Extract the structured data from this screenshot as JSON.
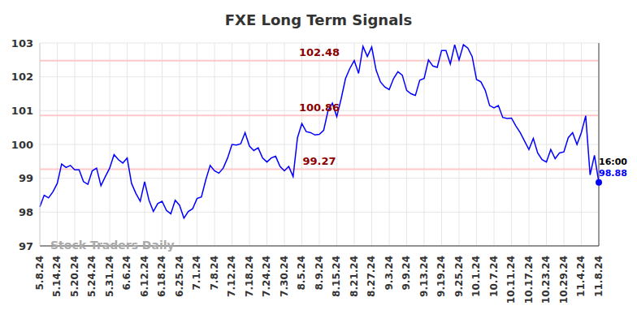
{
  "chart_data": {
    "type": "line",
    "title": "FXE Long Term Signals",
    "categories": [
      "5.8.24",
      null,
      null,
      null,
      "5.14.24",
      null,
      null,
      null,
      "5.20.24",
      null,
      null,
      null,
      "5.24.24",
      null,
      null,
      null,
      "5.31.24",
      null,
      null,
      null,
      "6.6.24",
      null,
      null,
      null,
      "6.12.24",
      null,
      null,
      null,
      "6.18.24",
      null,
      null,
      null,
      "6.25.24",
      null,
      null,
      null,
      "7.1.24",
      null,
      null,
      null,
      "7.8.24",
      null,
      null,
      null,
      "7.12.24",
      null,
      null,
      null,
      "7.18.24",
      null,
      null,
      null,
      "7.24.24",
      null,
      null,
      null,
      "7.30.24",
      null,
      null,
      null,
      "8.5.24",
      null,
      null,
      null,
      "8.9.24",
      null,
      null,
      null,
      "8.15.24",
      null,
      null,
      null,
      "8.21.24",
      null,
      null,
      null,
      "8.27.24",
      null,
      null,
      null,
      "9.3.24",
      null,
      null,
      null,
      "9.9.24",
      null,
      null,
      null,
      "9.13.24",
      null,
      null,
      null,
      "9.19.24",
      null,
      null,
      null,
      "9.25.24",
      null,
      null,
      null,
      "10.1.24",
      null,
      null,
      null,
      "10.7.24",
      null,
      null,
      null,
      "10.11.24",
      null,
      null,
      null,
      "10.17.24",
      null,
      null,
      null,
      "10.23.24",
      null,
      null,
      null,
      "10.29.24",
      null,
      null,
      null,
      "11.4.24",
      null,
      null,
      null,
      "11.8.24"
    ],
    "values": [
      98.15,
      98.5,
      98.42,
      98.6,
      98.85,
      99.42,
      99.32,
      99.38,
      99.25,
      99.25,
      98.9,
      98.82,
      99.22,
      99.3,
      98.78,
      99.05,
      99.3,
      99.7,
      99.55,
      99.45,
      99.6,
      98.85,
      98.55,
      98.32,
      98.9,
      98.35,
      98.02,
      98.25,
      98.32,
      98.05,
      97.95,
      98.35,
      98.2,
      97.82,
      98.02,
      98.1,
      98.4,
      98.45,
      98.95,
      99.38,
      99.22,
      99.15,
      99.3,
      99.6,
      100.0,
      99.98,
      100.02,
      100.35,
      99.95,
      99.82,
      99.9,
      99.6,
      99.48,
      99.6,
      99.65,
      99.35,
      99.22,
      99.35,
      99.05,
      100.2,
      100.62,
      100.38,
      100.35,
      100.28,
      100.3,
      100.42,
      101.0,
      101.22,
      100.82,
      101.35,
      101.95,
      102.25,
      102.48,
      102.1,
      102.9,
      102.6,
      102.88,
      102.2,
      101.85,
      101.7,
      101.62,
      101.95,
      102.15,
      102.05,
      101.6,
      101.5,
      101.45,
      101.9,
      101.95,
      102.5,
      102.32,
      102.28,
      102.78,
      102.78,
      102.38,
      102.95,
      102.5,
      102.95,
      102.85,
      102.6,
      101.92,
      101.85,
      101.6,
      101.15,
      101.08,
      101.15,
      100.8,
      100.77,
      100.78,
      100.55,
      100.35,
      100.1,
      99.85,
      100.18,
      99.75,
      99.55,
      99.48,
      99.85,
      99.58,
      99.75,
      99.78,
      100.2,
      100.35,
      100.0,
      100.35,
      100.85,
      99.1,
      99.68,
      98.88
    ],
    "color": "#0000ff",
    "ylim": [
      97,
      103
    ],
    "yticks": [
      97,
      98,
      99,
      100,
      101,
      102,
      103
    ],
    "grid": true,
    "hlines": [
      102.48,
      100.86,
      99.27
    ],
    "last_label": {
      "time": "16:00",
      "value": 98.88
    },
    "watermark": "Stock Traders Daily"
  }
}
